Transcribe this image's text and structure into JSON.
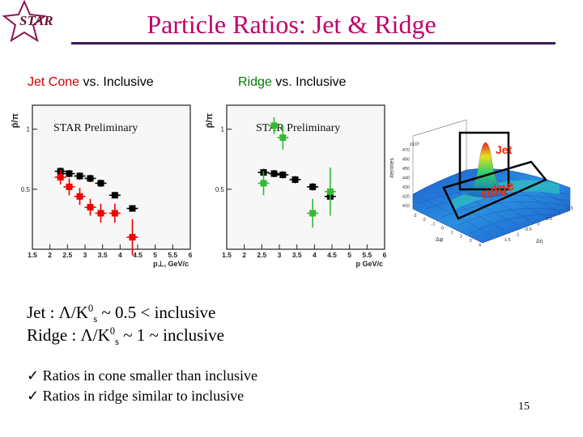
{
  "header": {
    "logo_text": "STAR",
    "title": "Particle Ratios: Jet & Ridge",
    "title_color": "#c0006a",
    "rule_color": "#3a1a5a"
  },
  "subheadings": {
    "left": {
      "highlight": "Jet Cone",
      "rest": " vs. Inclusive",
      "highlight_color": "#cc0000"
    },
    "right": {
      "highlight": "Ridge",
      "rest": " vs. Inclusive",
      "highlight_color": "#007a00"
    }
  },
  "body": {
    "jet_line": {
      "prefix": "Jet : ",
      "lambda": "Λ",
      "slash": "/K",
      "zero": "0",
      "s": "s",
      "suffix": " ~ 0.5 < inclusive"
    },
    "ridge_line": {
      "prefix": "Ridge : ",
      "lambda": "Λ",
      "slash": "/K",
      "zero": "0",
      "s": "s",
      "suffix": " ~ 1 ~ inclusive"
    },
    "bullets": [
      {
        "check": "ü",
        "text": "Ratios in cone smaller than inclusive"
      },
      {
        "check": "ü",
        "text": "Ratios in ridge similar to inclusive"
      }
    ]
  },
  "page_number": "15",
  "chart_data": [
    {
      "type": "scatter",
      "title": "",
      "ylabel": "p̄/π",
      "xlabel": "p⊥, GeV/c",
      "annotation": "STAR Preliminary",
      "xlim": [
        1.5,
        6
      ],
      "ylim": [
        0,
        1.2
      ],
      "x_ticks": [
        "1.5",
        "2",
        "2.5",
        "3",
        "3.5",
        "4",
        "4.5",
        "5",
        "5.5",
        "6"
      ],
      "y_ticks": [
        "0.5",
        "1"
      ],
      "series": [
        {
          "color": "#000000",
          "marker": "square",
          "x": [
            2.3,
            2.55,
            2.85,
            3.15,
            3.45,
            3.85,
            4.35
          ],
          "y": [
            0.65,
            0.63,
            0.61,
            0.59,
            0.55,
            0.45,
            0.34
          ],
          "yerr": [
            0.03,
            0.03,
            0.03,
            0.03,
            0.03,
            0.02,
            0.02
          ]
        },
        {
          "color": "#ee0000",
          "marker": "square",
          "x": [
            2.3,
            2.55,
            2.85,
            3.15,
            3.45,
            3.85,
            4.35
          ],
          "y": [
            0.6,
            0.52,
            0.44,
            0.35,
            0.3,
            0.3,
            0.1
          ],
          "yerr": [
            0.06,
            0.07,
            0.07,
            0.07,
            0.08,
            0.08,
            0.15
          ]
        }
      ]
    },
    {
      "type": "scatter",
      "title": "",
      "ylabel": "p̄/π",
      "xlabel": "p GeV/c",
      "annotation": "STAR Preliminary",
      "xlim": [
        1.5,
        6
      ],
      "ylim": [
        0,
        1.2
      ],
      "x_ticks": [
        "1.5",
        "2",
        "2.5",
        "3",
        "3.5",
        "4",
        "4.5",
        "5",
        "5.5",
        "6"
      ],
      "y_ticks": [
        "0.5",
        "1"
      ],
      "series": [
        {
          "color": "#000000",
          "marker": "square",
          "x": [
            2.55,
            2.85,
            3.1,
            3.45,
            3.95,
            4.45
          ],
          "y": [
            0.64,
            0.63,
            0.62,
            0.58,
            0.52,
            0.44
          ],
          "yerr": [
            0.03,
            0.03,
            0.03,
            0.03,
            0.03,
            0.03
          ]
        },
        {
          "color": "#33bb33",
          "marker": "square",
          "x": [
            2.55,
            2.85,
            3.1,
            3.95,
            4.45
          ],
          "y": [
            0.55,
            1.03,
            0.93,
            0.3,
            0.48
          ],
          "yerr": [
            0.1,
            0.07,
            0.1,
            0.12,
            0.2
          ]
        }
      ]
    },
    {
      "type": "surface",
      "z_label": "#entries",
      "z_ticks": [
        "410",
        "420",
        "430",
        "440",
        "450",
        "460",
        "470"
      ],
      "z_exponent": "x10³",
      "x_label": "Δφ",
      "y_label": "Δη",
      "x_ticks": [
        "-3",
        "-2",
        "-1",
        "0",
        "1",
        "2",
        "3",
        "4"
      ],
      "y_ticks": [
        "-1.5",
        "-1",
        "-0.5",
        "0",
        "0.5",
        "1",
        "1.5"
      ],
      "annotations": [
        "Jet",
        "ridge"
      ],
      "annotation_color": "#ff2200"
    }
  ]
}
